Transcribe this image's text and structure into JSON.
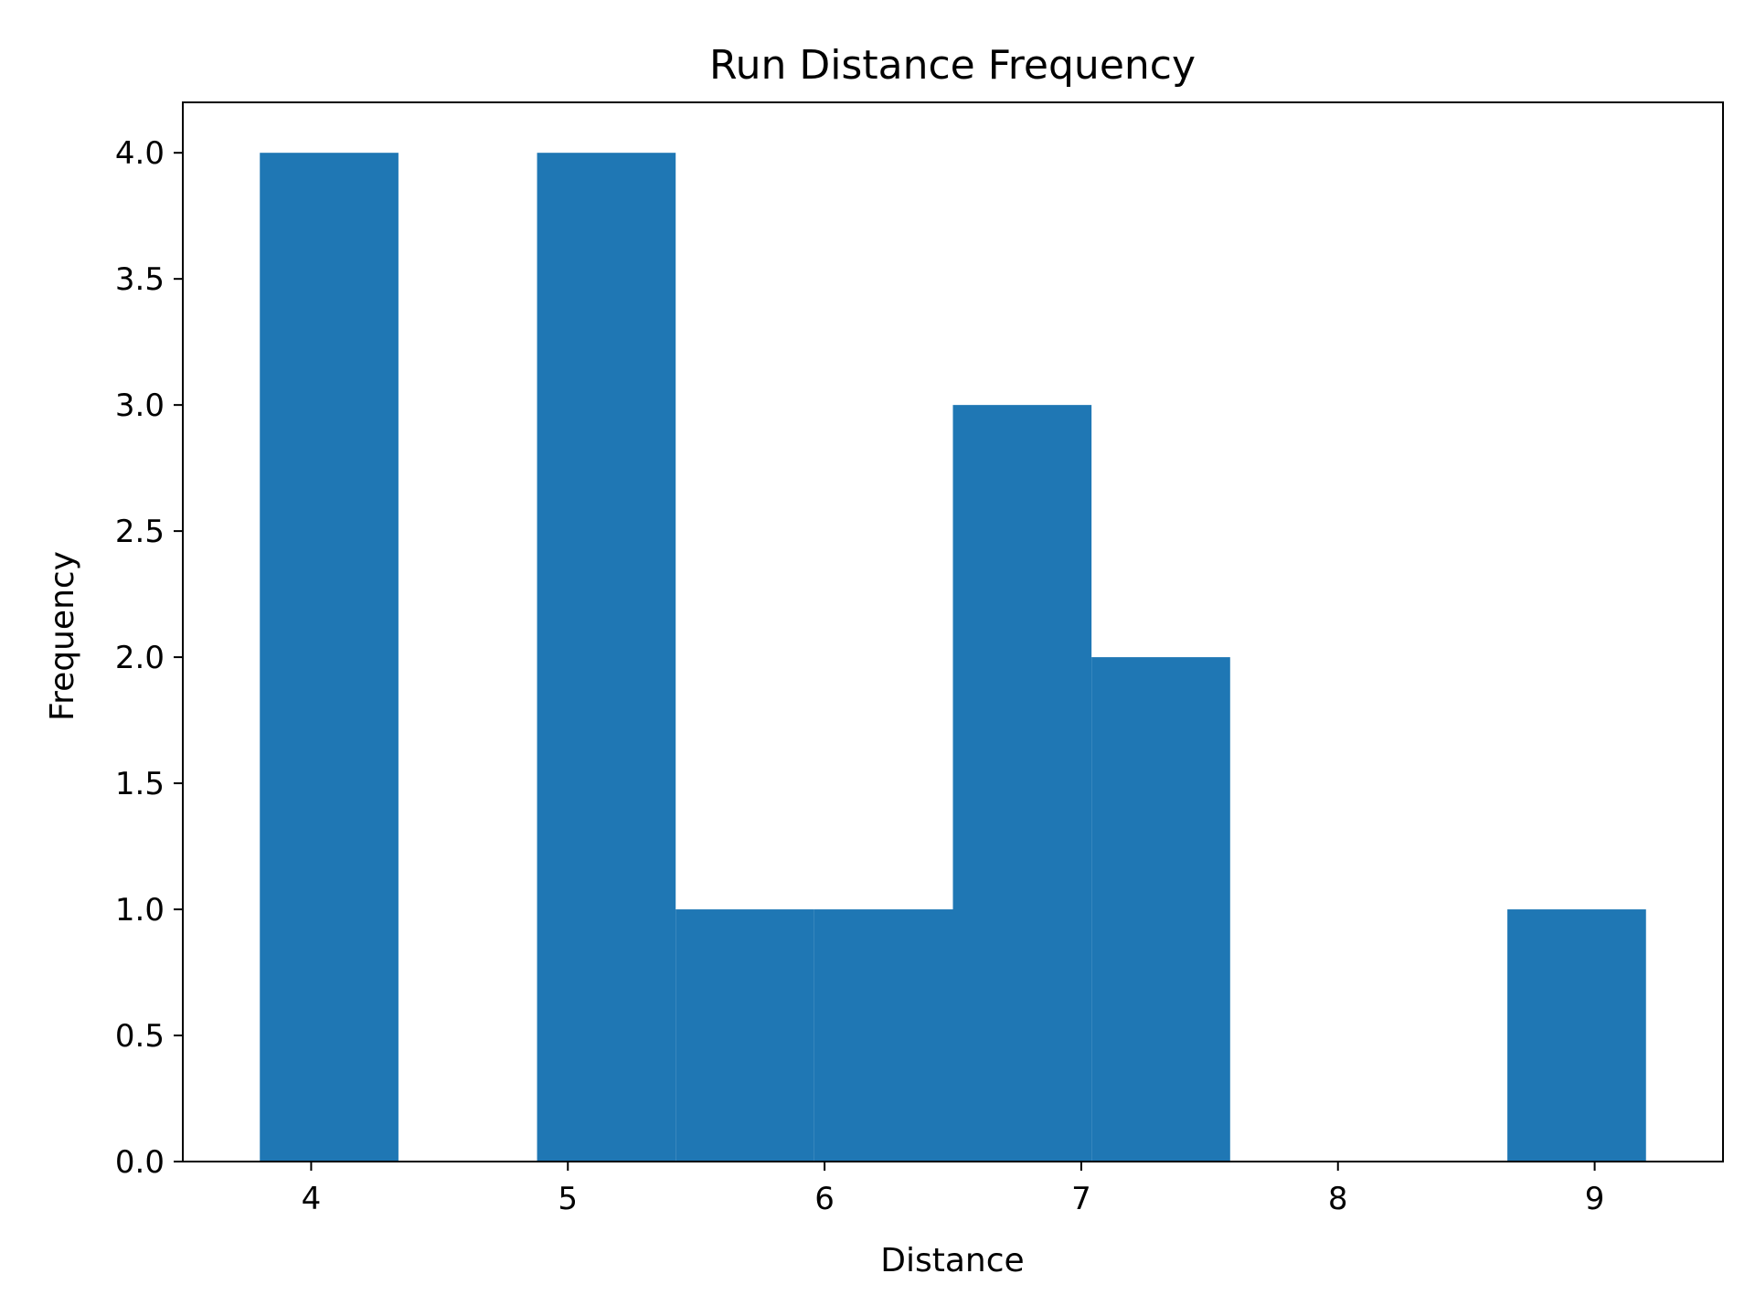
{
  "chart_data": {
    "type": "bar",
    "title": "Run Distance Frequency",
    "xlabel": "Distance",
    "ylabel": "Frequency",
    "xlim": [
      3.5,
      9.5
    ],
    "ylim": [
      0,
      4.2
    ],
    "x_ticks": [
      4,
      5,
      6,
      7,
      8,
      9
    ],
    "y_ticks": [
      0.0,
      0.5,
      1.0,
      1.5,
      2.0,
      2.5,
      3.0,
      3.5,
      4.0
    ],
    "bins": [
      {
        "start": 3.8,
        "end": 4.34,
        "count": 4
      },
      {
        "start": 4.34,
        "end": 4.88,
        "count": 0
      },
      {
        "start": 4.88,
        "end": 5.42,
        "count": 4
      },
      {
        "start": 5.42,
        "end": 5.96,
        "count": 1
      },
      {
        "start": 5.96,
        "end": 6.5,
        "count": 1
      },
      {
        "start": 6.5,
        "end": 7.04,
        "count": 3
      },
      {
        "start": 7.04,
        "end": 7.58,
        "count": 2
      },
      {
        "start": 7.58,
        "end": 8.12,
        "count": 0
      },
      {
        "start": 8.12,
        "end": 8.66,
        "count": 0
      },
      {
        "start": 8.66,
        "end": 9.2,
        "count": 1
      }
    ],
    "grid": false,
    "bar_color": "#1f77b4"
  }
}
